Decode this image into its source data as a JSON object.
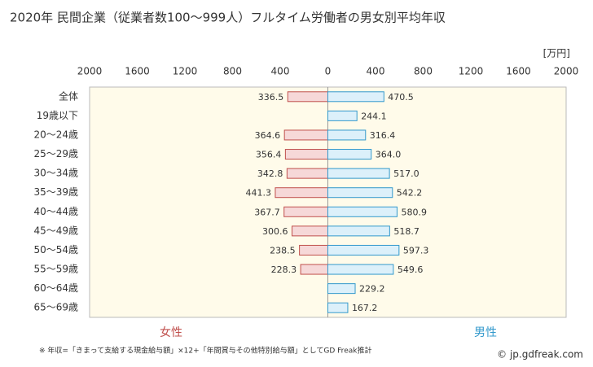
{
  "chart_data": {
    "type": "butterfly-bar",
    "title": "2020年 民間企業（従業者数100～999人）フルタイム労働者の男女別平均年収",
    "unit": "[万円]",
    "categories": [
      "全体",
      "19歳以下",
      "20～24歳",
      "25～29歳",
      "30～34歳",
      "35～39歳",
      "40～44歳",
      "45～49歳",
      "50～54歳",
      "55～59歳",
      "60～64歳",
      "65～69歳"
    ],
    "series": [
      {
        "name": "女性",
        "color": "#c0504d",
        "bar_color": "#f6d8d8",
        "side": "left",
        "values": [
          336.5,
          null,
          364.6,
          356.4,
          342.8,
          441.3,
          367.7,
          300.6,
          238.5,
          228.3,
          null,
          null
        ],
        "value_labels": [
          "336.5",
          null,
          "364.6",
          "356.4",
          "342.8",
          "441.3",
          "367.7",
          "300.6",
          "238.5",
          "228.3",
          null,
          null
        ]
      },
      {
        "name": "男性",
        "color": "#3399cc",
        "bar_color": "#dcf0fa",
        "side": "right",
        "values": [
          470.5,
          244.1,
          316.4,
          364.0,
          517.0,
          542.2,
          580.9,
          518.7,
          597.3,
          549.6,
          229.2,
          167.2
        ],
        "value_labels": [
          "470.5",
          "244.1",
          "316.4",
          "364.0",
          "517.0",
          "542.2",
          "580.9",
          "518.7",
          "597.3",
          "549.6",
          "229.2",
          "167.2"
        ]
      }
    ],
    "xlim": [
      0,
      2000
    ],
    "xticks": [
      0,
      400,
      800,
      1200,
      1600,
      2000
    ],
    "grid": false,
    "footnote": "※ 年収=「きまって支給する現金給与額」×12+「年間賞与その他特別給与額」としてGD Freak推計",
    "source": "© jp.gdfreak.com"
  }
}
